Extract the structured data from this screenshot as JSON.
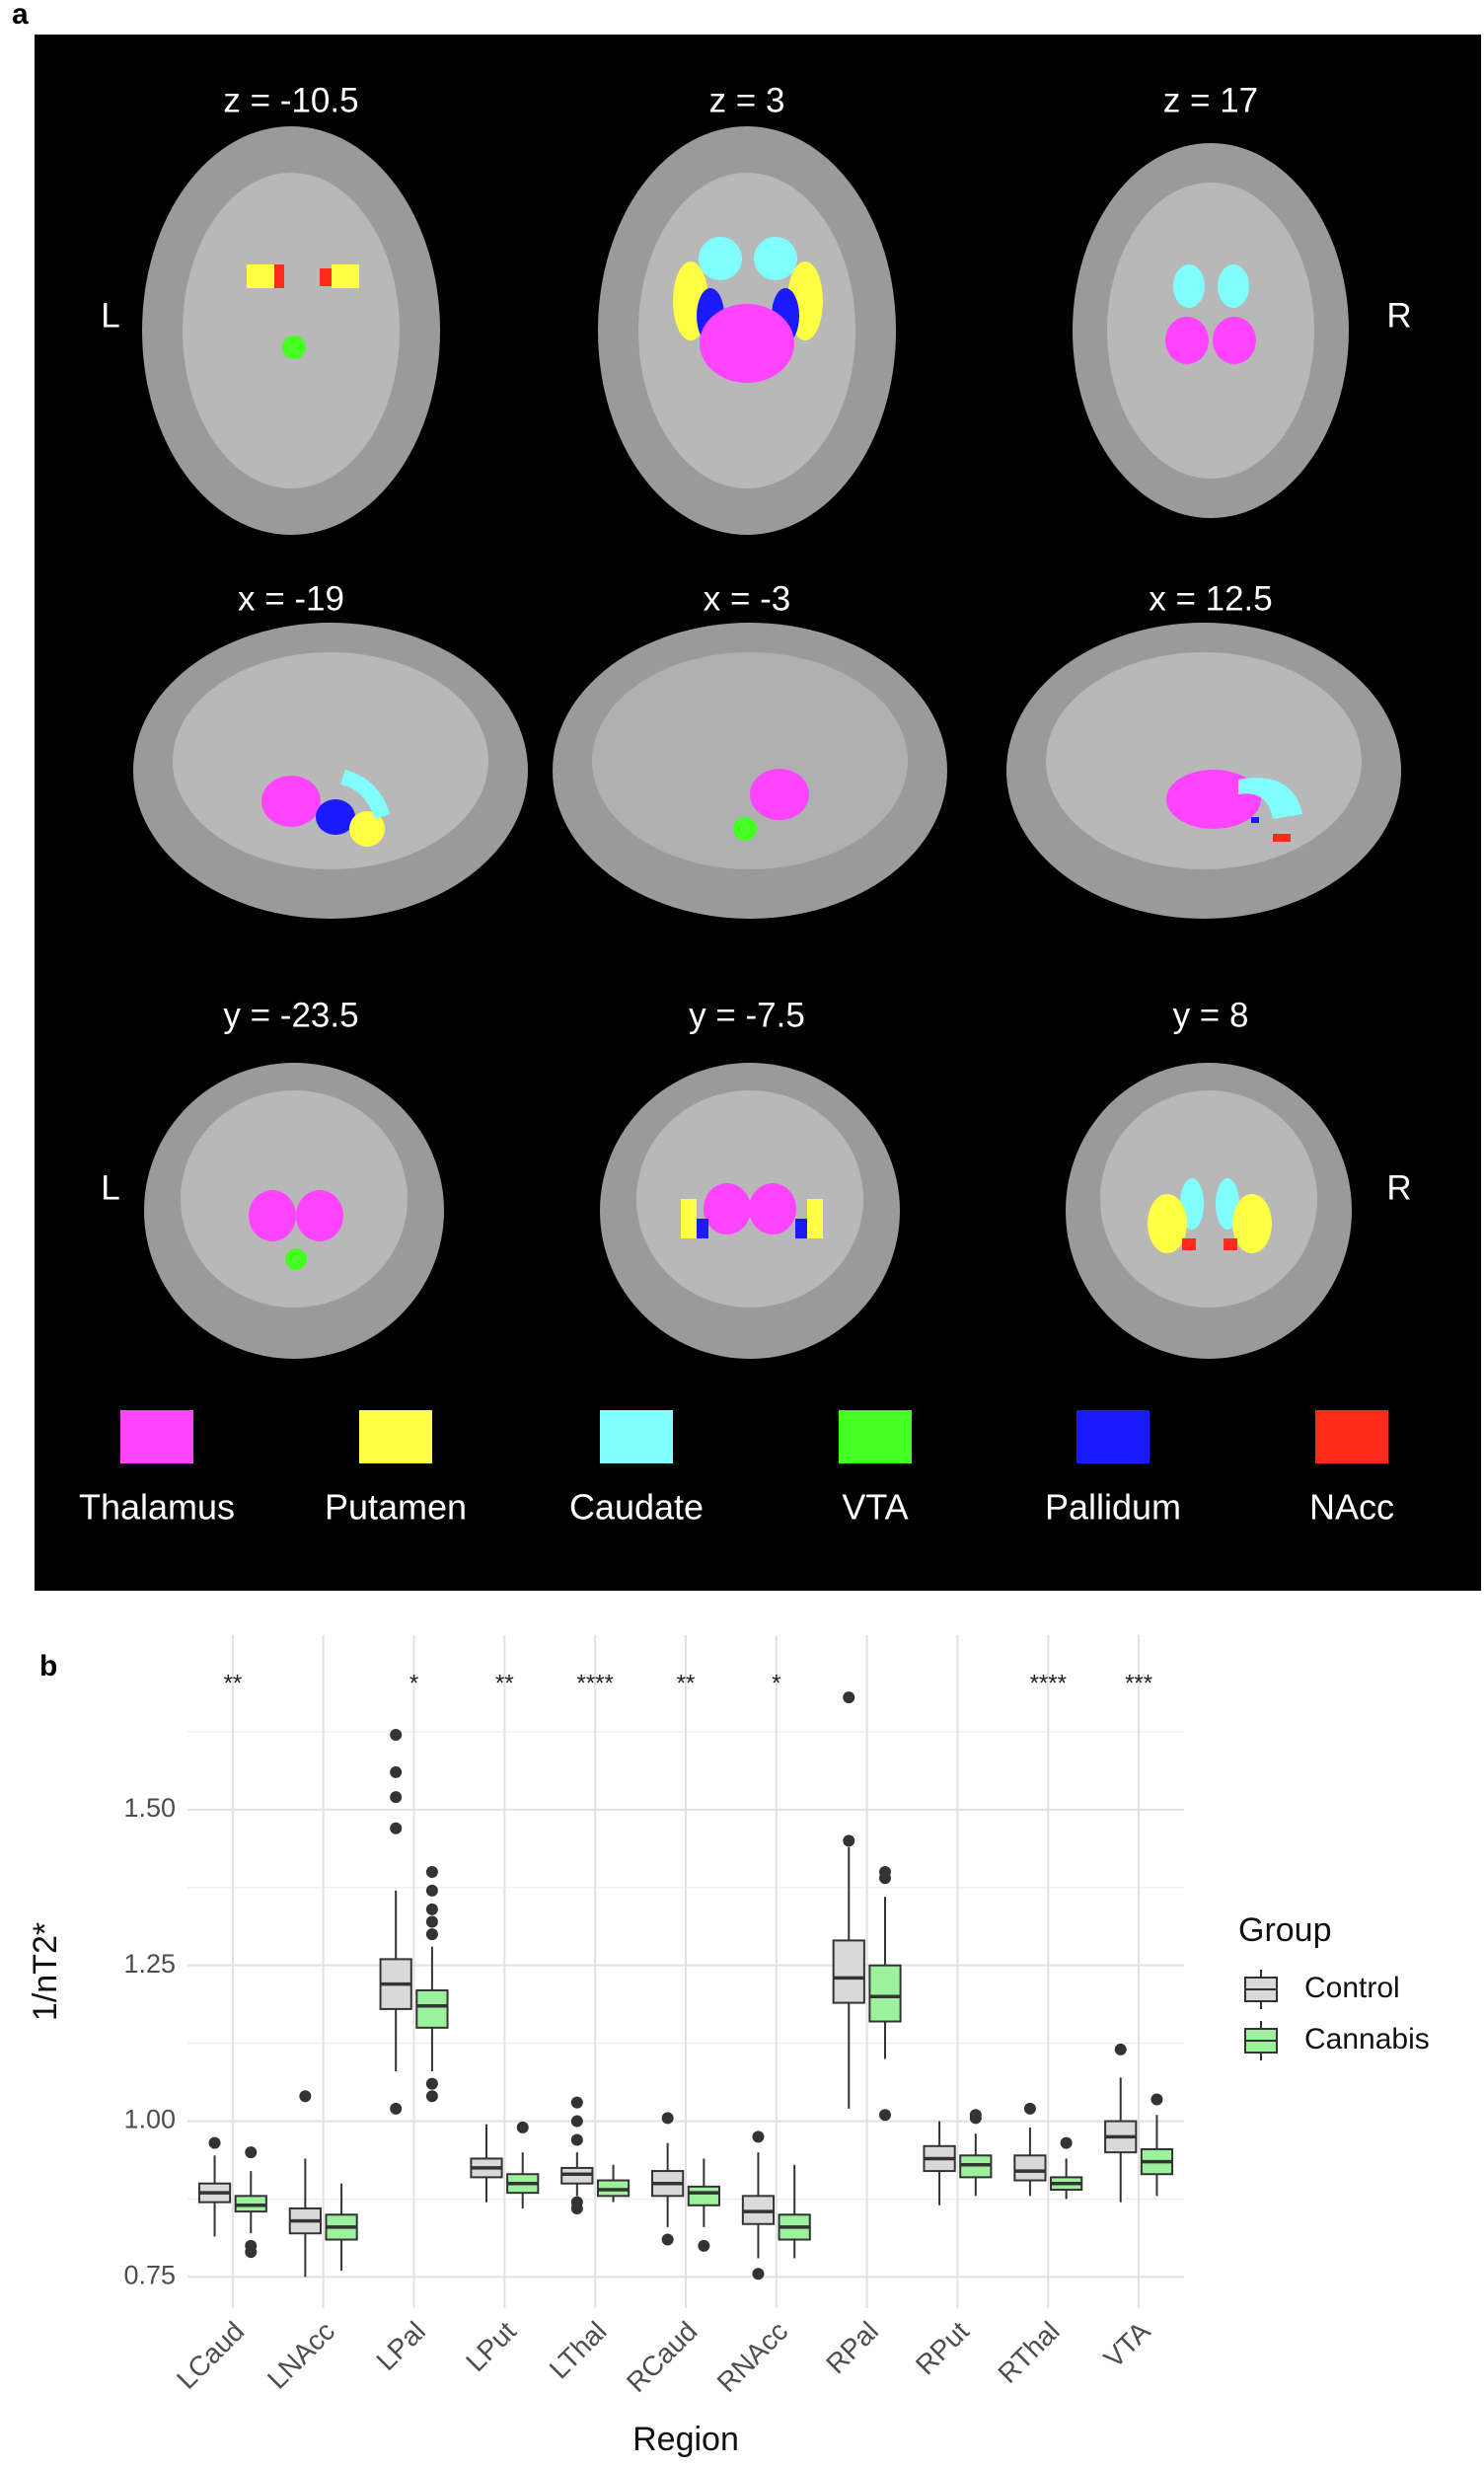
{
  "panel_a": {
    "label": "a",
    "slices": [
      "z = -10.5",
      "z = 3",
      "z = 17",
      "x = -19",
      "x = -3",
      "x = 12.5",
      "y = -23.5",
      "y = -7.5",
      "y = 8"
    ],
    "side_labels": [
      "L",
      "R",
      "L",
      "R"
    ],
    "legend": [
      {
        "name": "Thalamus",
        "color": "#ff44ff"
      },
      {
        "name": "Putamen",
        "color": "#ffff44"
      },
      {
        "name": "Caudate",
        "color": "#80ffff"
      },
      {
        "name": "VTA",
        "color": "#44ff22"
      },
      {
        "name": "Pallidum",
        "color": "#1a1aff"
      },
      {
        "name": "NAcc",
        "color": "#ff2a1a"
      }
    ]
  },
  "chart_data": {
    "type": "box",
    "panel_label": "b",
    "x_label": "Region",
    "y_label": "1/nT2*",
    "categories": [
      "LCaud",
      "LNAcc",
      "LPal",
      "LPut",
      "LThal",
      "RCaud",
      "RNAcc",
      "RPal",
      "RPut",
      "RThal",
      "VTA"
    ],
    "significance": [
      "**",
      null,
      "*",
      "**",
      "****",
      "**",
      "*",
      null,
      null,
      "****",
      "***"
    ],
    "ylim": [
      0.7,
      1.78
    ],
    "yticks": [
      0.75,
      {
        "value": 1,
        "label": "1.00"
      },
      1.25,
      {
        "value": 1.5,
        "label": "1.50"
      }
    ],
    "minor_yticks": [
      0.875,
      1.125,
      1.375,
      1.625
    ],
    "grid": true,
    "legend_title": "Group",
    "legend_position": "right",
    "series": [
      {
        "name": "Control",
        "color": "#d9d9d9",
        "whisker_low": [
          0.815,
          0.75,
          1.08,
          0.87,
          0.88,
          0.83,
          0.78,
          1.02,
          0.865,
          0.88,
          0.87
        ],
        "q1": [
          0.87,
          0.82,
          1.18,
          0.91,
          0.9,
          0.88,
          0.835,
          1.19,
          0.92,
          0.905,
          0.95
        ],
        "median": [
          0.885,
          0.84,
          1.22,
          0.925,
          0.915,
          0.9,
          0.855,
          1.23,
          0.94,
          0.92,
          0.975
        ],
        "q3": [
          0.9,
          0.86,
          1.26,
          0.94,
          0.925,
          0.92,
          0.88,
          1.29,
          0.96,
          0.945,
          1.0
        ],
        "whisker_high": [
          0.945,
          0.94,
          1.37,
          0.995,
          0.95,
          0.965,
          0.95,
          1.44,
          1.0,
          0.99,
          1.07
        ],
        "outliers": [
          [
            0.965
          ],
          [
            1.04
          ],
          [
            1.47,
            1.52,
            1.56,
            1.62,
            1.02
          ],
          [],
          [
            0.97,
            1.0,
            1.03,
            0.87,
            0.86
          ],
          [
            1.005,
            0.81
          ],
          [
            0.975,
            0.755
          ],
          [
            1.45,
            1.68
          ],
          [],
          [
            1.02
          ],
          [
            1.115
          ]
        ]
      },
      {
        "name": "Cannabis",
        "color": "#9cf29c",
        "whisker_low": [
          0.82,
          0.76,
          1.08,
          0.86,
          0.87,
          0.83,
          0.78,
          1.1,
          0.88,
          0.875,
          0.88
        ],
        "q1": [
          0.855,
          0.81,
          1.15,
          0.885,
          0.88,
          0.865,
          0.81,
          1.16,
          0.91,
          0.89,
          0.915
        ],
        "median": [
          0.865,
          0.83,
          1.185,
          0.9,
          0.89,
          0.885,
          0.83,
          1.2,
          0.93,
          0.9,
          0.935
        ],
        "q3": [
          0.88,
          0.85,
          1.21,
          0.915,
          0.905,
          0.895,
          0.85,
          1.25,
          0.945,
          0.91,
          0.955
        ],
        "whisker_high": [
          0.92,
          0.9,
          1.28,
          0.95,
          0.93,
          0.94,
          0.93,
          1.36,
          0.98,
          0.94,
          1.01
        ],
        "outliers": [
          [
            0.95,
            0.8,
            0.79
          ],
          [],
          [
            1.3,
            1.32,
            1.34,
            1.37,
            1.4,
            1.06,
            1.04
          ],
          [
            0.99
          ],
          [],
          [
            0.8
          ],
          [],
          [
            1.39,
            1.4,
            1.01
          ],
          [
            1.005,
            1.01
          ],
          [
            0.965
          ],
          [
            1.035
          ]
        ]
      }
    ]
  }
}
